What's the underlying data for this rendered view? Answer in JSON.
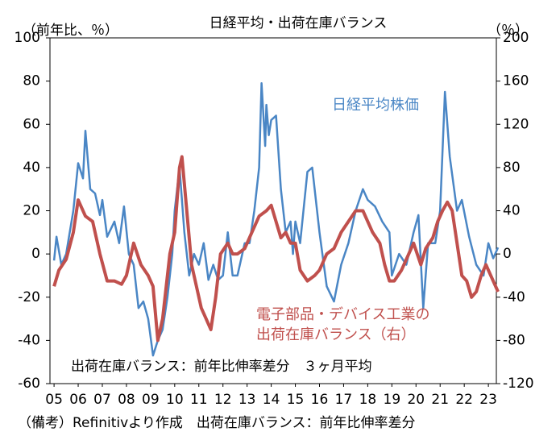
{
  "chart_data": {
    "type": "line",
    "title": "日経平均・出荷在庫バランス",
    "y_label": "（前年比、％）",
    "y2_label": "（％）",
    "note": "出荷在庫バランス：前年比伸率差分　３ヶ月平均",
    "footer": "（備考）Refinitivより作成　出荷在庫バランス：前年比伸率差分",
    "xlim": [
      2004.83,
      2023.33
    ],
    "xticks": [
      {
        "value": 2005,
        "label": "05"
      },
      {
        "value": 2006,
        "label": "06"
      },
      {
        "value": 2007,
        "label": "07"
      },
      {
        "value": 2008,
        "label": "08"
      },
      {
        "value": 2009,
        "label": "09"
      },
      {
        "value": 2010,
        "label": "10"
      },
      {
        "value": 2011,
        "label": "11"
      },
      {
        "value": 2012,
        "label": "12"
      },
      {
        "value": 2013,
        "label": "13"
      },
      {
        "value": 2014,
        "label": "14"
      },
      {
        "value": 2015,
        "label": "15"
      },
      {
        "value": 2016,
        "label": "16"
      },
      {
        "value": 2017,
        "label": "17"
      },
      {
        "value": 2018,
        "label": "18"
      },
      {
        "value": 2019,
        "label": "19"
      },
      {
        "value": 2020,
        "label": "20"
      },
      {
        "value": 2021,
        "label": "21"
      },
      {
        "value": 2022,
        "label": "22"
      },
      {
        "value": 2023,
        "label": "23"
      }
    ],
    "ylim": [
      -60,
      100
    ],
    "yticks": [
      -60,
      -40,
      -20,
      0,
      20,
      40,
      60,
      80,
      100
    ],
    "y2lim": [
      -120,
      200
    ],
    "y2ticks": [
      -120,
      -80,
      -40,
      0,
      40,
      80,
      120,
      160,
      200
    ],
    "series": [
      {
        "name": "日経平均株価",
        "color": "#4a86c5",
        "x": [
          2005.0,
          2005.1,
          2005.3,
          2005.5,
          2005.8,
          2006.0,
          2006.2,
          2006.3,
          2006.5,
          2006.7,
          2006.9,
          2007.0,
          2007.2,
          2007.5,
          2007.7,
          2007.9,
          2008.1,
          2008.3,
          2008.5,
          2008.7,
          2008.9,
          2009.1,
          2009.3,
          2009.5,
          2009.7,
          2009.9,
          2010.0,
          2010.2,
          2010.4,
          2010.6,
          2010.8,
          2011.0,
          2011.2,
          2011.4,
          2011.6,
          2011.8,
          2012.0,
          2012.2,
          2012.4,
          2012.6,
          2012.9,
          2013.1,
          2013.3,
          2013.5,
          2013.6,
          2013.75,
          2013.8,
          2013.9,
          2014.0,
          2014.2,
          2014.4,
          2014.6,
          2014.8,
          2014.9,
          2015.0,
          2015.2,
          2015.5,
          2015.7,
          2015.9,
          2016.0,
          2016.3,
          2016.6,
          2016.9,
          2017.2,
          2017.5,
          2017.8,
          2018.0,
          2018.3,
          2018.6,
          2018.9,
          2019.0,
          2019.3,
          2019.6,
          2019.9,
          2020.1,
          2020.3,
          2020.5,
          2020.8,
          2021.0,
          2021.2,
          2021.4,
          2021.7,
          2021.9,
          2022.2,
          2022.5,
          2022.8,
          2023.0,
          2023.2,
          2023.4
        ],
        "values": [
          -3,
          8,
          -5,
          0,
          20,
          42,
          35,
          57,
          30,
          28,
          18,
          25,
          8,
          15,
          5,
          22,
          0,
          -5,
          -25,
          -22,
          -30,
          -47,
          -40,
          -35,
          -20,
          0,
          20,
          40,
          10,
          -10,
          0,
          -5,
          5,
          -12,
          -5,
          -12,
          -10,
          10,
          -10,
          -10,
          5,
          5,
          20,
          40,
          79,
          50,
          69,
          55,
          62,
          64,
          30,
          10,
          15,
          0,
          15,
          5,
          38,
          40,
          20,
          10,
          -15,
          -22,
          -5,
          5,
          20,
          30,
          25,
          22,
          15,
          10,
          -10,
          0,
          -5,
          10,
          18,
          -25,
          5,
          5,
          20,
          75,
          45,
          20,
          25,
          8,
          -5,
          -10,
          5,
          -2,
          3
        ]
      },
      {
        "name": "電子部品・デバイス工業の\n出荷在庫バランス（右）",
        "color": "#c0504d",
        "axis": "y2",
        "x": [
          2005.0,
          2005.2,
          2005.5,
          2005.8,
          2006.0,
          2006.3,
          2006.6,
          2006.9,
          2007.2,
          2007.5,
          2007.8,
          2008.0,
          2008.3,
          2008.6,
          2008.9,
          2009.1,
          2009.3,
          2009.5,
          2009.8,
          2010.0,
          2010.2,
          2010.3,
          2010.5,
          2010.7,
          2010.9,
          2011.1,
          2011.3,
          2011.5,
          2011.7,
          2011.9,
          2012.2,
          2012.4,
          2012.6,
          2012.9,
          2013.2,
          2013.5,
          2013.8,
          2014.0,
          2014.2,
          2014.4,
          2014.6,
          2014.8,
          2015.0,
          2015.2,
          2015.5,
          2015.8,
          2016.0,
          2016.3,
          2016.6,
          2016.9,
          2017.2,
          2017.5,
          2017.8,
          2018.0,
          2018.2,
          2018.5,
          2018.7,
          2018.9,
          2019.1,
          2019.4,
          2019.7,
          2019.9,
          2020.2,
          2020.4,
          2020.7,
          2020.9,
          2021.1,
          2021.3,
          2021.5,
          2021.7,
          2021.9,
          2022.1,
          2022.3,
          2022.5,
          2022.7,
          2022.9,
          2023.1,
          2023.4
        ],
        "values": [
          -30,
          -15,
          -5,
          20,
          50,
          35,
          30,
          0,
          -25,
          -25,
          -28,
          -20,
          10,
          -10,
          -20,
          -30,
          -80,
          -60,
          0,
          20,
          80,
          90,
          40,
          -10,
          -30,
          -50,
          -60,
          -70,
          -40,
          0,
          10,
          0,
          0,
          5,
          20,
          35,
          40,
          45,
          30,
          15,
          20,
          10,
          10,
          -15,
          -25,
          -20,
          -15,
          0,
          5,
          20,
          30,
          40,
          40,
          30,
          20,
          10,
          -10,
          -25,
          -25,
          -15,
          0,
          10,
          -10,
          5,
          15,
          30,
          40,
          48,
          40,
          10,
          -20,
          -25,
          -40,
          -35,
          -20,
          -10,
          -20,
          -35
        ]
      }
    ]
  }
}
